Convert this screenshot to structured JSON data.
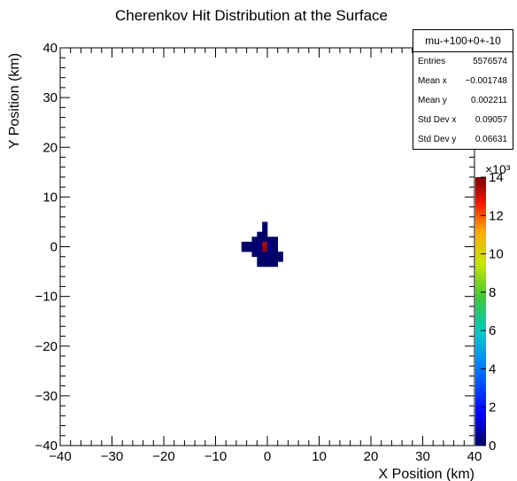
{
  "chart_data": {
    "type": "heatmap",
    "title": "Cherenkov Hit Distribution at the Surface",
    "xlabel": "X Position (km)",
    "ylabel": "Y Position (km)",
    "xlim": [
      -40,
      40
    ],
    "ylim": [
      -40,
      40
    ],
    "x_ticks": [
      -40,
      -30,
      -20,
      -10,
      0,
      10,
      20,
      30,
      40
    ],
    "y_ticks": [
      -40,
      -30,
      -20,
      -10,
      0,
      10,
      20,
      30,
      40
    ],
    "bin_width": 1,
    "colorbar": {
      "range": [
        0,
        14
      ],
      "multiplier_label": "×10³",
      "ticks": [
        0,
        2,
        4,
        6,
        8,
        10,
        12,
        14
      ],
      "colormap": "rainbow"
    },
    "bins": [
      {
        "x": -0.5,
        "y": 4.5,
        "v": 0.01
      },
      {
        "x": -0.5,
        "y": 3.5,
        "v": 0.01
      },
      {
        "x": -0.5,
        "y": 2.5,
        "v": 0.01
      },
      {
        "x": -1.5,
        "y": 2.5,
        "v": 0.01
      },
      {
        "x": -2.5,
        "y": 1.5,
        "v": 0.02
      },
      {
        "x": -1.5,
        "y": 1.5,
        "v": 0.04
      },
      {
        "x": -0.5,
        "y": 1.5,
        "v": 0.08
      },
      {
        "x": 0.5,
        "y": 1.5,
        "v": 0.05
      },
      {
        "x": 1.5,
        "y": 1.5,
        "v": 0.01
      },
      {
        "x": -4.5,
        "y": 0.5,
        "v": 0.01
      },
      {
        "x": -3.5,
        "y": 0.5,
        "v": 0.01
      },
      {
        "x": -2.5,
        "y": 0.5,
        "v": 0.05
      },
      {
        "x": -1.5,
        "y": 0.5,
        "v": 0.2
      },
      {
        "x": -0.5,
        "y": 0.5,
        "v": 13.5
      },
      {
        "x": 0.5,
        "y": 0.5,
        "v": 0.3
      },
      {
        "x": 1.5,
        "y": 0.5,
        "v": 0.04
      },
      {
        "x": -4.5,
        "y": -0.5,
        "v": 0.01
      },
      {
        "x": -3.5,
        "y": -0.5,
        "v": 0.02
      },
      {
        "x": -2.5,
        "y": -0.5,
        "v": 0.06
      },
      {
        "x": -1.5,
        "y": -0.5,
        "v": 0.25
      },
      {
        "x": -0.5,
        "y": -0.5,
        "v": 13.8
      },
      {
        "x": 0.5,
        "y": -0.5,
        "v": 0.35
      },
      {
        "x": 1.5,
        "y": -0.5,
        "v": 0.05
      },
      {
        "x": -2.5,
        "y": -1.5,
        "v": 0.02
      },
      {
        "x": -1.5,
        "y": -1.5,
        "v": 0.06
      },
      {
        "x": -0.5,
        "y": -1.5,
        "v": 0.1
      },
      {
        "x": 0.5,
        "y": -1.5,
        "v": 0.07
      },
      {
        "x": 1.5,
        "y": -1.5,
        "v": 0.03
      },
      {
        "x": 2.5,
        "y": -1.5,
        "v": 0.01
      },
      {
        "x": -1.5,
        "y": -2.5,
        "v": 0.02
      },
      {
        "x": -0.5,
        "y": -2.5,
        "v": 0.03
      },
      {
        "x": 0.5,
        "y": -2.5,
        "v": 0.02
      },
      {
        "x": 1.5,
        "y": -2.5,
        "v": 0.01
      },
      {
        "x": 2.5,
        "y": -2.5,
        "v": 0.01
      },
      {
        "x": -1.5,
        "y": -3.5,
        "v": 0.01
      },
      {
        "x": -0.5,
        "y": -3.5,
        "v": 0.01
      },
      {
        "x": 0.5,
        "y": -3.5,
        "v": 0.01
      },
      {
        "x": 1.5,
        "y": -3.5,
        "v": 0.01
      }
    ]
  },
  "stats": {
    "title": "mu-+100+0+-10",
    "rows": [
      {
        "label": "Entries",
        "value": "5576574"
      },
      {
        "label": "Mean x",
        "value": "−0.001748"
      },
      {
        "label": "Mean y",
        "value": "0.002211"
      },
      {
        "label": "Std Dev x",
        "value": "0.09057"
      },
      {
        "label": "Std Dev y",
        "value": "0.06631"
      }
    ]
  }
}
